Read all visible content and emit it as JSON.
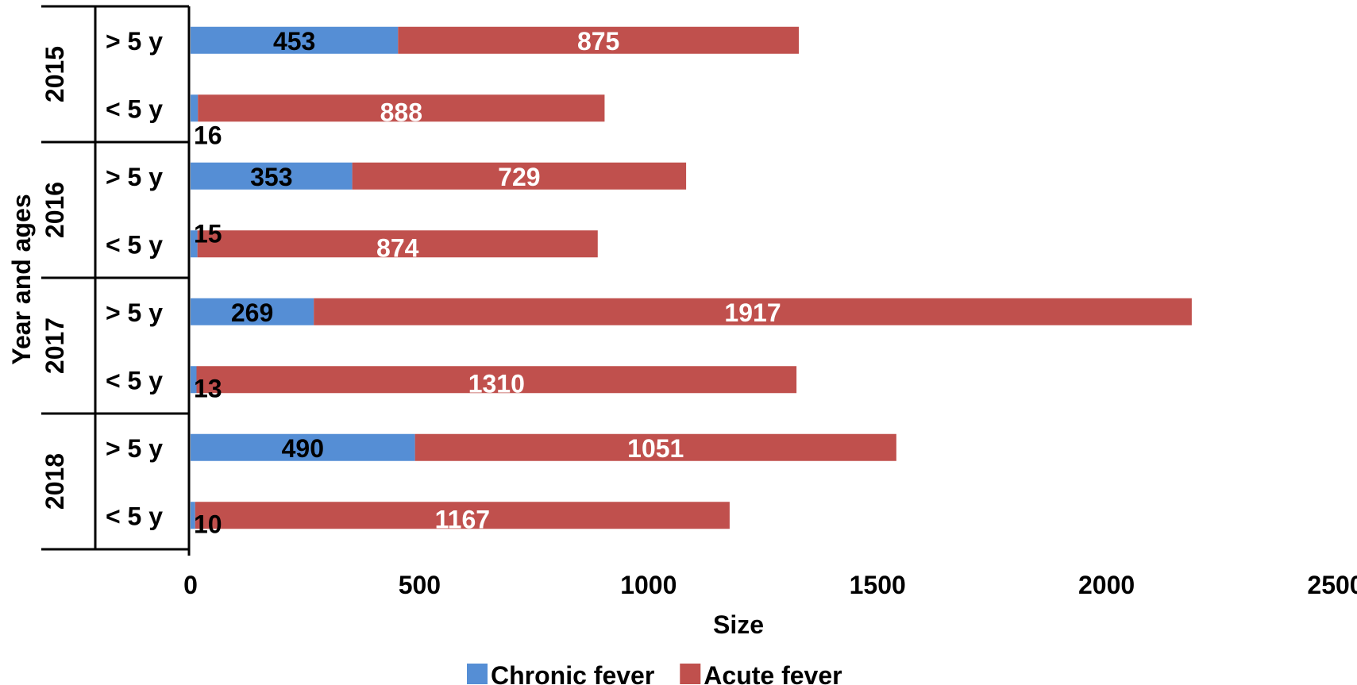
{
  "chart_data": {
    "type": "bar",
    "orientation": "horizontal",
    "stacked": true,
    "xlabel": "Size",
    "ylabel": "Year and ages",
    "xlim": [
      0,
      2500
    ],
    "xticks": [
      "0",
      "500",
      "1000",
      "1500",
      "2000",
      "2500"
    ],
    "grid": false,
    "legend_position": "bottom",
    "groups": [
      {
        "label": "2015",
        "categories": [
          "> 5 y",
          "< 5 y"
        ]
      },
      {
        "label": "2016",
        "categories": [
          "> 5 y",
          "< 5 y"
        ]
      },
      {
        "label": "2017",
        "categories": [
          "> 5 y",
          "< 5 y"
        ]
      },
      {
        "label": "2018",
        "categories": [
          "> 5 y",
          "< 5 y"
        ]
      }
    ],
    "series": [
      {
        "name": "Chronic fever",
        "color": "#558ED5",
        "values": [
          453,
          16,
          353,
          15,
          269,
          13,
          490,
          10
        ]
      },
      {
        "name": "Acute fever",
        "color": "#C0504D",
        "values": [
          875,
          888,
          729,
          874,
          1917,
          1310,
          1051,
          1167
        ]
      }
    ],
    "data_label_colors": {
      "Chronic fever": "#000000",
      "Acute fever": "#ffffff"
    }
  }
}
